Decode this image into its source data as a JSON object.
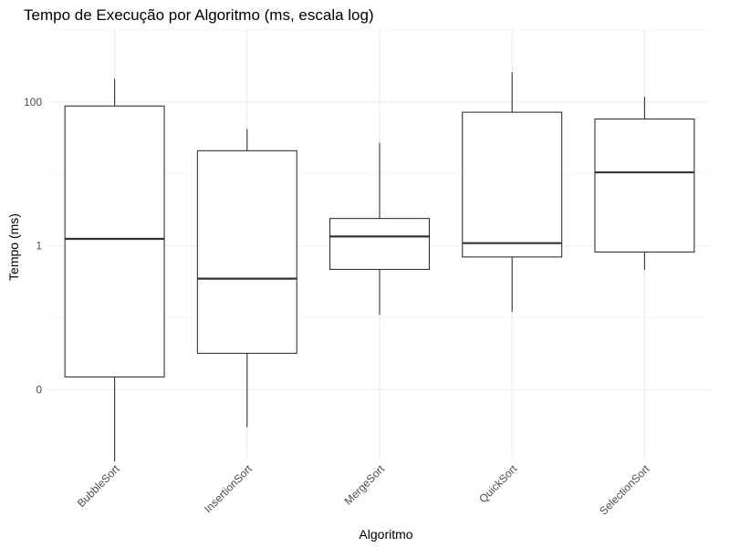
{
  "chart_data": {
    "type": "boxplot",
    "title": "Tempo de Execução por Algoritmo (ms, escala log)",
    "xlabel": "Algoritmo",
    "ylabel": "Tempo (ms)",
    "y_scale": "log10",
    "y_ticks": [
      0.01,
      1,
      100
    ],
    "y_tick_labels": [
      "0",
      "1",
      "100"
    ],
    "ylim": [
      0.0011,
      1000
    ],
    "grid": true,
    "colors": {
      "box_stroke": "#333333",
      "grid": "#ebebeb"
    },
    "categories": [
      "BubbleSort",
      "InsertionSort",
      "MergeSort",
      "QuickSort",
      "SelectionSort"
    ],
    "boxes": [
      {
        "category": "BubbleSort",
        "min": 0.001,
        "q1": 0.015,
        "median": 1.25,
        "q3": 88,
        "max": 210
      },
      {
        "category": "InsertionSort",
        "min": 0.003,
        "q1": 0.032,
        "median": 0.35,
        "q3": 21,
        "max": 42
      },
      {
        "category": "MergeSort",
        "min": 0.11,
        "q1": 0.47,
        "median": 1.35,
        "q3": 2.4,
        "max": 27
      },
      {
        "category": "QuickSort",
        "min": 0.12,
        "q1": 0.7,
        "median": 1.09,
        "q3": 72,
        "max": 260
      },
      {
        "category": "SelectionSort",
        "min": 0.46,
        "q1": 0.82,
        "median": 10.5,
        "q3": 58,
        "max": 118
      }
    ]
  }
}
